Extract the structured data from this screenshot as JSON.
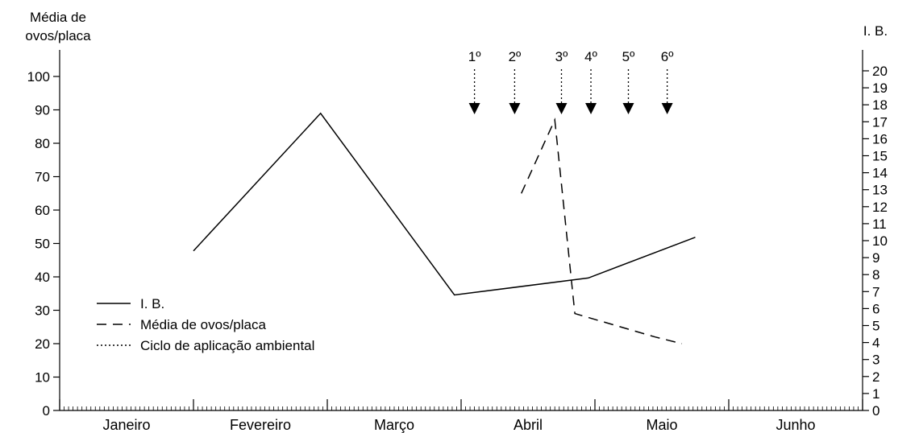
{
  "chart_data": {
    "type": "line",
    "left_axis": {
      "title_lines": [
        "Média de",
        "ovos/placa"
      ],
      "ylim": [
        0,
        100
      ],
      "ticks": [
        0,
        10,
        20,
        30,
        40,
        50,
        60,
        70,
        80,
        90,
        100
      ]
    },
    "right_axis": {
      "title": "I. B.",
      "ylim": [
        0,
        20
      ],
      "ticks": [
        0,
        1,
        2,
        3,
        4,
        5,
        6,
        7,
        8,
        9,
        10,
        11,
        12,
        13,
        14,
        15,
        16,
        17,
        18,
        19,
        20
      ]
    },
    "x_axis": {
      "months": [
        "Janeiro",
        "Fevereiro",
        "Março",
        "Abril",
        "Maio",
        "Junho"
      ],
      "xlim": [
        0,
        6
      ]
    },
    "series": [
      {
        "name": "I. B.",
        "axis": "right",
        "style": "solid",
        "x": [
          1.0,
          1.95,
          2.95,
          3.95,
          4.75
        ],
        "y": [
          9.4,
          17.5,
          6.8,
          7.8,
          10.2
        ]
      },
      {
        "name": "Média de ovos/placa",
        "axis": "left",
        "style": "dashed",
        "x": [
          3.45,
          3.7,
          3.85,
          4.45,
          4.65
        ],
        "y": [
          65,
          87,
          29,
          22,
          20
        ]
      }
    ],
    "applications": {
      "name": "Ciclo de aplicação ambiental",
      "labels": [
        "1º",
        "2º",
        "3º",
        "4º",
        "5º",
        "6º"
      ],
      "x": [
        3.1,
        3.4,
        3.75,
        3.97,
        4.25,
        4.54
      ]
    },
    "legend": {
      "placement": "lower-left",
      "entries": [
        {
          "label": "I. B.",
          "style": "solid"
        },
        {
          "label": "Média de ovos/placa",
          "style": "dashed"
        },
        {
          "label": "Ciclo de aplicação ambiental",
          "style": "dotted"
        }
      ]
    }
  }
}
